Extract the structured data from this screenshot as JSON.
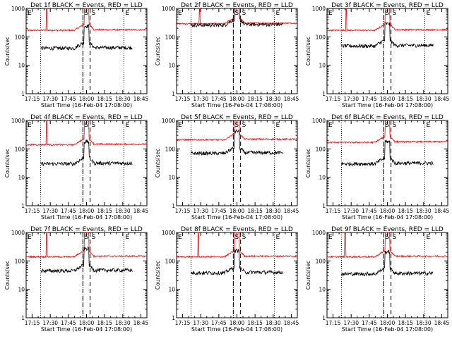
{
  "chart_data": {
    "type": "line",
    "x_label_template": "Start Time ({date} {time})",
    "date": "16-Feb-04",
    "time": "17:08:00",
    "ylabel": "Counts/sec",
    "yscale": "log",
    "ylim": [
      1,
      1000
    ],
    "y_ticks": [
      1,
      10,
      100,
      1000
    ],
    "y_tick_labels": [
      "1",
      "10",
      "100",
      "1000"
    ],
    "x_ticks_min": [
      5,
      20,
      35,
      50,
      65,
      80,
      95
    ],
    "x_tick_labels": [
      "17:15",
      "17:30",
      "17:45",
      "18:00",
      "18:15",
      "18:30",
      "18:45"
    ],
    "xlim_min": [
      0,
      100
    ],
    "markers": [
      {
        "label": "E",
        "x_min": 0,
        "style": "dotted"
      },
      {
        "label": "S",
        "x_min": 47,
        "style": "dashed"
      },
      {
        "label": "S",
        "x_min": 53,
        "style": "dashed"
      },
      {
        "label": "E",
        "x_min": 81,
        "style": "dotted"
      }
    ],
    "extra_dotted_min": [
      12,
      47
    ],
    "colors": {
      "events": "#000000",
      "lld": "#ff0000",
      "axis": "#000000"
    },
    "panels": [
      {
        "title": "Det 1f BLACK = Events, RED = LLD",
        "events_base": 40,
        "lld_base": 170,
        "lld_spike_x_min": 17
      },
      {
        "title": "Det 2f BLACK = Events, RED = LLD",
        "events_base": 260,
        "lld_base": 290,
        "lld_spike_x_min": 19
      },
      {
        "title": "Det 3f BLACK = Events, RED = LLD",
        "events_base": 48,
        "lld_base": 170,
        "lld_spike_x_min": 16
      },
      {
        "title": "Det 4f BLACK = Events, RED = LLD",
        "events_base": 30,
        "lld_base": 140,
        "lld_spike_x_min": 17
      },
      {
        "title": "Det 5f BLACK = Events, RED = LLD",
        "events_base": 70,
        "lld_base": 210,
        "lld_spike_x_min": null
      },
      {
        "title": "Det 6f BLACK = Events, RED = LLD",
        "events_base": 30,
        "lld_base": 170,
        "lld_spike_x_min": null
      },
      {
        "title": "Det 7f BLACK = Events, RED = LLD",
        "events_base": 45,
        "lld_base": 140,
        "lld_spike_x_min": 17
      },
      {
        "title": "Det 8f BLACK = Events, RED = LLD",
        "events_base": 38,
        "lld_base": 140,
        "lld_spike_x_min": 18
      },
      {
        "title": "Det 9f BLACK = Events, RED = LLD",
        "events_base": 35,
        "lld_base": 140,
        "lld_spike_x_min": 15
      }
    ]
  }
}
